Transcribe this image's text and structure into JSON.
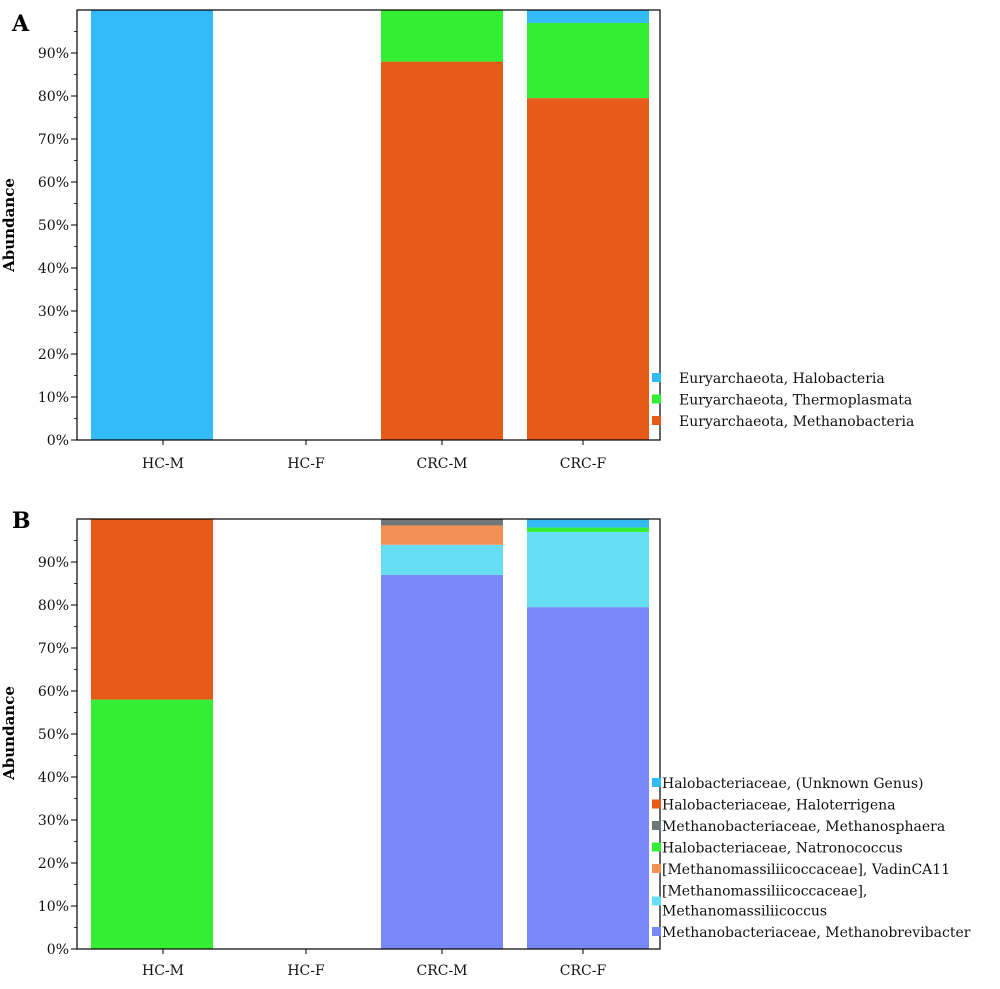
{
  "chart_data": [
    {
      "panel": "A",
      "type": "bar",
      "stacked": true,
      "categories": [
        "HC-M",
        "HC-F",
        "CRC-M",
        "CRC-F"
      ],
      "ylabel": "Abundance",
      "ylim": [
        0,
        100
      ],
      "yticks": [
        "0%",
        "10%",
        "20%",
        "30%",
        "40%",
        "50%",
        "60%",
        "70%",
        "80%",
        "90%"
      ],
      "legend_position": "right",
      "series": [
        {
          "name": "Euryarchaeota, Methanobacteria",
          "color": "#e55b17",
          "values": [
            0,
            0,
            88,
            79.5
          ]
        },
        {
          "name": "Euryarchaeota, Thermoplasmata",
          "color": "#33ee33",
          "values": [
            0,
            0,
            12,
            17.5
          ]
        },
        {
          "name": "Euryarchaeota, Halobacteria",
          "color": "#33bbf7",
          "values": [
            100,
            0,
            0,
            3
          ]
        }
      ]
    },
    {
      "panel": "B",
      "type": "bar",
      "stacked": true,
      "categories": [
        "HC-M",
        "HC-F",
        "CRC-M",
        "CRC-F"
      ],
      "ylabel": "Abundance",
      "ylim": [
        0,
        100
      ],
      "yticks": [
        "0%",
        "10%",
        "20%",
        "30%",
        "40%",
        "50%",
        "60%",
        "70%",
        "80%",
        "90%"
      ],
      "legend_position": "right",
      "series": [
        {
          "name": "Methanobacteriaceae, Methanobrevibacter",
          "color": "#7888f7",
          "values": [
            0,
            0,
            87,
            79.5
          ]
        },
        {
          "name": "[Methanomassiliicoccaceae], Methanomassiliicoccus",
          "legend_lines": [
            "[Methanomassiliicoccaceae],",
            "Methanomassiliicoccus"
          ],
          "color": "#66ddf2",
          "values": [
            0,
            0,
            7,
            17.5
          ]
        },
        {
          "name": "[Methanomassiliicoccaceae], VadinCA11",
          "color": "#f29055",
          "values": [
            0,
            0,
            4.5,
            0
          ]
        },
        {
          "name": "Halobacteriaceae, Natronococcus",
          "color": "#33ee33",
          "values": [
            58,
            0,
            0,
            1
          ]
        },
        {
          "name": "Methanobacteriaceae, Methanosphaera",
          "color": "#6f7778",
          "values": [
            0,
            0,
            1.5,
            0
          ]
        },
        {
          "name": "Halobacteriaceae, Haloterrigena",
          "color": "#e55b17",
          "values": [
            42,
            0,
            0,
            0
          ]
        },
        {
          "name": "Halobacteriaceae, (Unknown Genus)",
          "color": "#33bbf7",
          "values": [
            0,
            0,
            0,
            2
          ]
        }
      ],
      "legend_order": [
        6,
        5,
        4,
        3,
        2,
        1,
        0
      ]
    }
  ]
}
